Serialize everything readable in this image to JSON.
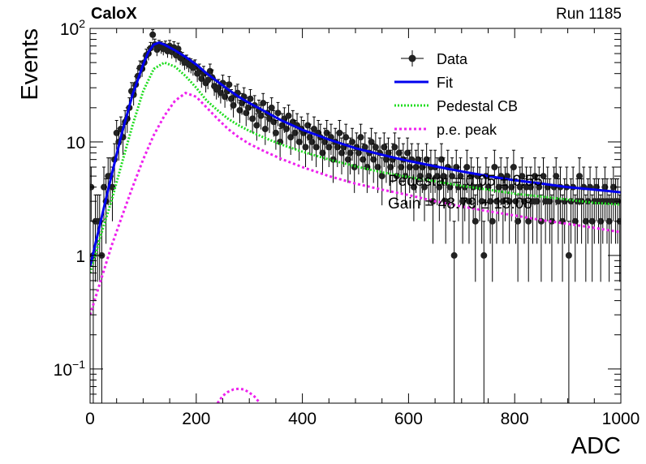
{
  "header": {
    "experiment": "CaloX",
    "run": "Run 1185"
  },
  "chart_data": {
    "type": "scatter",
    "title": "",
    "xlabel": "ADC",
    "ylabel": "Events",
    "xlim": [
      0,
      1000
    ],
    "ylim": [
      0.05,
      100
    ],
    "yscale": "log",
    "x_ticks": [
      0,
      200,
      400,
      600,
      800,
      1000
    ],
    "y_ticks": [
      {
        "value": 0.1,
        "base": "10",
        "exp": "−1"
      },
      {
        "value": 1,
        "base": "1",
        "exp": ""
      },
      {
        "value": 10,
        "base": "10",
        "exp": ""
      },
      {
        "value": 100,
        "base": "10",
        "exp": "2"
      }
    ],
    "legend_position": "top-right",
    "legend": [
      {
        "label": "Data",
        "marker": "point-errorbar",
        "color": "#000000"
      },
      {
        "label": "Fit",
        "marker": "solid-line",
        "color": "#0000ee"
      },
      {
        "label": "Pedestal CB",
        "marker": "dotted-line",
        "color": "#22dd22"
      },
      {
        "label": "p.e. peak",
        "marker": "dashed-line",
        "color": "#ee22ee"
      }
    ],
    "annotations": [
      "Pedestal = 0.05 ± 0.55",
      "Gain = 48.79 ± 15.08"
    ],
    "series": [
      {
        "name": "Data",
        "x": [
          2,
          6,
          10,
          14,
          18,
          22,
          26,
          30,
          34,
          38,
          42,
          46,
          50,
          54,
          58,
          62,
          66,
          70,
          74,
          78,
          82,
          86,
          90,
          94,
          98,
          102,
          106,
          110,
          114,
          118,
          122,
          126,
          130,
          134,
          138,
          142,
          146,
          150,
          154,
          158,
          162,
          166,
          170,
          174,
          178,
          182,
          186,
          190,
          194,
          198,
          202,
          206,
          210,
          214,
          218,
          222,
          226,
          230,
          234,
          238,
          242,
          246,
          250,
          254,
          258,
          262,
          266,
          270,
          274,
          278,
          282,
          286,
          290,
          294,
          298,
          302,
          306,
          310,
          314,
          318,
          322,
          326,
          330,
          334,
          338,
          342,
          346,
          350,
          354,
          358,
          362,
          366,
          370,
          374,
          378,
          382,
          386,
          390,
          394,
          398,
          402,
          406,
          410,
          414,
          418,
          422,
          426,
          430,
          434,
          438,
          442,
          446,
          450,
          454,
          458,
          462,
          466,
          470,
          474,
          478,
          482,
          486,
          490,
          494,
          498,
          502,
          506,
          510,
          514,
          518,
          522,
          526,
          530,
          534,
          538,
          542,
          546,
          550,
          554,
          558,
          562,
          566,
          570,
          574,
          578,
          582,
          586,
          590,
          594,
          598,
          602,
          606,
          610,
          614,
          618,
          622,
          626,
          630,
          634,
          638,
          642,
          646,
          650,
          654,
          658,
          662,
          666,
          670,
          674,
          678,
          682,
          686,
          690,
          694,
          698,
          702,
          706,
          710,
          714,
          718,
          722,
          726,
          730,
          734,
          738,
          742,
          746,
          750,
          754,
          758,
          762,
          766,
          770,
          774,
          778,
          782,
          786,
          790,
          794,
          798,
          802,
          806,
          810,
          814,
          818,
          822,
          826,
          830,
          834,
          838,
          842,
          846,
          850,
          854,
          858,
          862,
          866,
          870,
          874,
          878,
          882,
          886,
          890,
          894,
          898,
          902,
          906,
          910,
          914,
          918,
          922,
          926,
          930,
          934,
          938,
          942,
          946,
          950,
          954,
          958,
          962,
          966,
          970,
          974,
          978,
          982,
          986,
          990,
          994,
          998
        ],
        "values": [
          4,
          1,
          2,
          2,
          2,
          1,
          4,
          3,
          5,
          5,
          4,
          7,
          12,
          10,
          13,
          11,
          15,
          16,
          20,
          28,
          26,
          32,
          38,
          45,
          44,
          50,
          58,
          60,
          67,
          88,
          72,
          65,
          70,
          68,
          66,
          69,
          63,
          70,
          62,
          68,
          58,
          66,
          55,
          54,
          50,
          51,
          48,
          47,
          45,
          46,
          40,
          42,
          36,
          40,
          33,
          35,
          42,
          37,
          31,
          29,
          30,
          27,
          33,
          25,
          28,
          32,
          24,
          21,
          26,
          27,
          19,
          22,
          25,
          18,
          20,
          24,
          16,
          21,
          14,
          19,
          17,
          22,
          13,
          18,
          16,
          20,
          15,
          12,
          18,
          10,
          14,
          16,
          13,
          17,
          11,
          15,
          12,
          14,
          10,
          13,
          12,
          9,
          14,
          11,
          10,
          13,
          9,
          12,
          11,
          8,
          10,
          12,
          9,
          11,
          7,
          10,
          9,
          12,
          8,
          9,
          11,
          7,
          8,
          10,
          6,
          9,
          8,
          11,
          7,
          9,
          6,
          8,
          10,
          7,
          9,
          6,
          8,
          5,
          9,
          7,
          8,
          6,
          7,
          9,
          5,
          8,
          6,
          7,
          5,
          8,
          6,
          7,
          4,
          6,
          7,
          5,
          6,
          4,
          7,
          5,
          6,
          3,
          6,
          5,
          4,
          7,
          5,
          3,
          6,
          4,
          5,
          1,
          6,
          4,
          5,
          3,
          4,
          6,
          3,
          5,
          4,
          2,
          5,
          4,
          3,
          1,
          5,
          4,
          3,
          2,
          6,
          3,
          4,
          5,
          3,
          4,
          5,
          3,
          4,
          6,
          3,
          2,
          4,
          5,
          3,
          4,
          2,
          4,
          3,
          5,
          3,
          4,
          2,
          5,
          3,
          4,
          3,
          2,
          4,
          5,
          3,
          4,
          2,
          3,
          4,
          1,
          3,
          4,
          2,
          3,
          5,
          3,
          4,
          2,
          3,
          4,
          2,
          3,
          4,
          3,
          2,
          3,
          4,
          3,
          2,
          3,
          4,
          3,
          3,
          2
        ],
        "errors": "sqrt(N)"
      },
      {
        "name": "Fit",
        "x": [
          0,
          20,
          40,
          60,
          80,
          100,
          110,
          120,
          130,
          140,
          160,
          180,
          200,
          220,
          240,
          260,
          280,
          300,
          330,
          360,
          400,
          450,
          500,
          550,
          600,
          650,
          700,
          750,
          800,
          850,
          900,
          950,
          1000
        ],
        "values": [
          0.8,
          2.0,
          5.0,
          12.0,
          26.0,
          48.0,
          62.0,
          72.0,
          75.0,
          72.0,
          64.0,
          56.0,
          48.0,
          40.0,
          34.0,
          29.0,
          25.0,
          22.0,
          18.5,
          15.5,
          12.8,
          10.5,
          8.8,
          7.7,
          6.8,
          6.1,
          5.5,
          5.0,
          4.6,
          4.3,
          4.0,
          3.8,
          3.6
        ]
      },
      {
        "name": "Pedestal CB",
        "x": [
          0,
          20,
          40,
          60,
          80,
          100,
          120,
          140,
          160,
          180,
          200,
          220,
          240,
          260,
          280,
          300,
          330,
          360,
          400,
          450,
          500,
          550,
          600,
          650,
          700,
          750,
          800,
          850,
          900,
          950,
          1000
        ],
        "values": [
          0.7,
          1.5,
          3.0,
          6.5,
          14.0,
          28.0,
          44.0,
          50.0,
          46.0,
          38.0,
          30.0,
          23.0,
          19.0,
          16.0,
          14.0,
          12.5,
          10.8,
          9.5,
          8.2,
          7.0,
          6.1,
          5.4,
          4.9,
          4.5,
          4.1,
          3.8,
          3.5,
          3.3,
          3.1,
          2.9,
          2.8
        ]
      },
      {
        "name": "p.e. peak",
        "x": [
          0,
          20,
          40,
          60,
          80,
          100,
          120,
          140,
          160,
          180,
          200,
          220,
          240,
          260,
          280,
          300,
          330,
          360,
          400,
          450,
          500,
          550,
          600,
          650,
          700,
          750,
          800,
          850,
          900,
          950,
          1000
        ],
        "values": [
          0.3,
          0.6,
          1.2,
          2.2,
          4.0,
          7.0,
          11.5,
          17.0,
          23.0,
          27.0,
          25.0,
          20.0,
          16.0,
          13.0,
          11.0,
          9.6,
          8.2,
          7.1,
          6.0,
          5.0,
          4.3,
          3.8,
          3.4,
          3.0,
          2.7,
          2.45,
          2.25,
          2.05,
          1.9,
          1.75,
          1.6
        ]
      },
      {
        "name": "p.e. peak (second component)",
        "x": [
          240,
          250,
          260,
          270,
          280,
          290,
          300,
          310,
          320
        ],
        "values": [
          0.05,
          0.058,
          0.063,
          0.066,
          0.067,
          0.066,
          0.062,
          0.057,
          0.05
        ]
      }
    ]
  }
}
